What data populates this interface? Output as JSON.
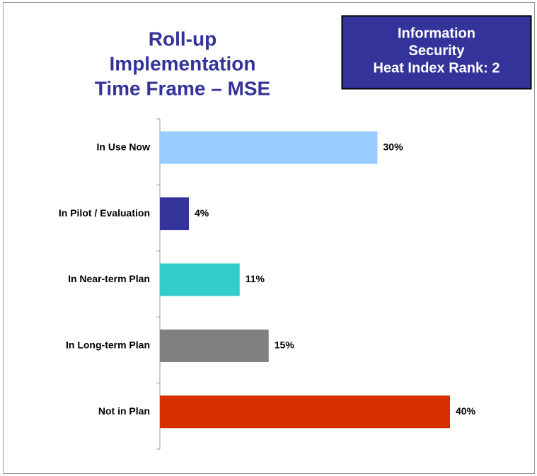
{
  "chart_data": {
    "type": "bar",
    "orientation": "horizontal",
    "title": [
      "Roll-up",
      "Implementation",
      "Time Frame –  MSE"
    ],
    "annotation": [
      "Information",
      "Security",
      "Heat Index Rank: 2"
    ],
    "categories": [
      "In Use Now",
      "In Pilot / Evaluation",
      "In Near-term Plan",
      "In Long-term Plan",
      "Not in Plan"
    ],
    "values": [
      30,
      4,
      11,
      15,
      40
    ],
    "value_labels": [
      "30%",
      "4%",
      "11%",
      "15%",
      "40%"
    ],
    "colors": [
      "#99ccff",
      "#333399",
      "#33cccc",
      "#808080",
      "#d63000"
    ]
  }
}
